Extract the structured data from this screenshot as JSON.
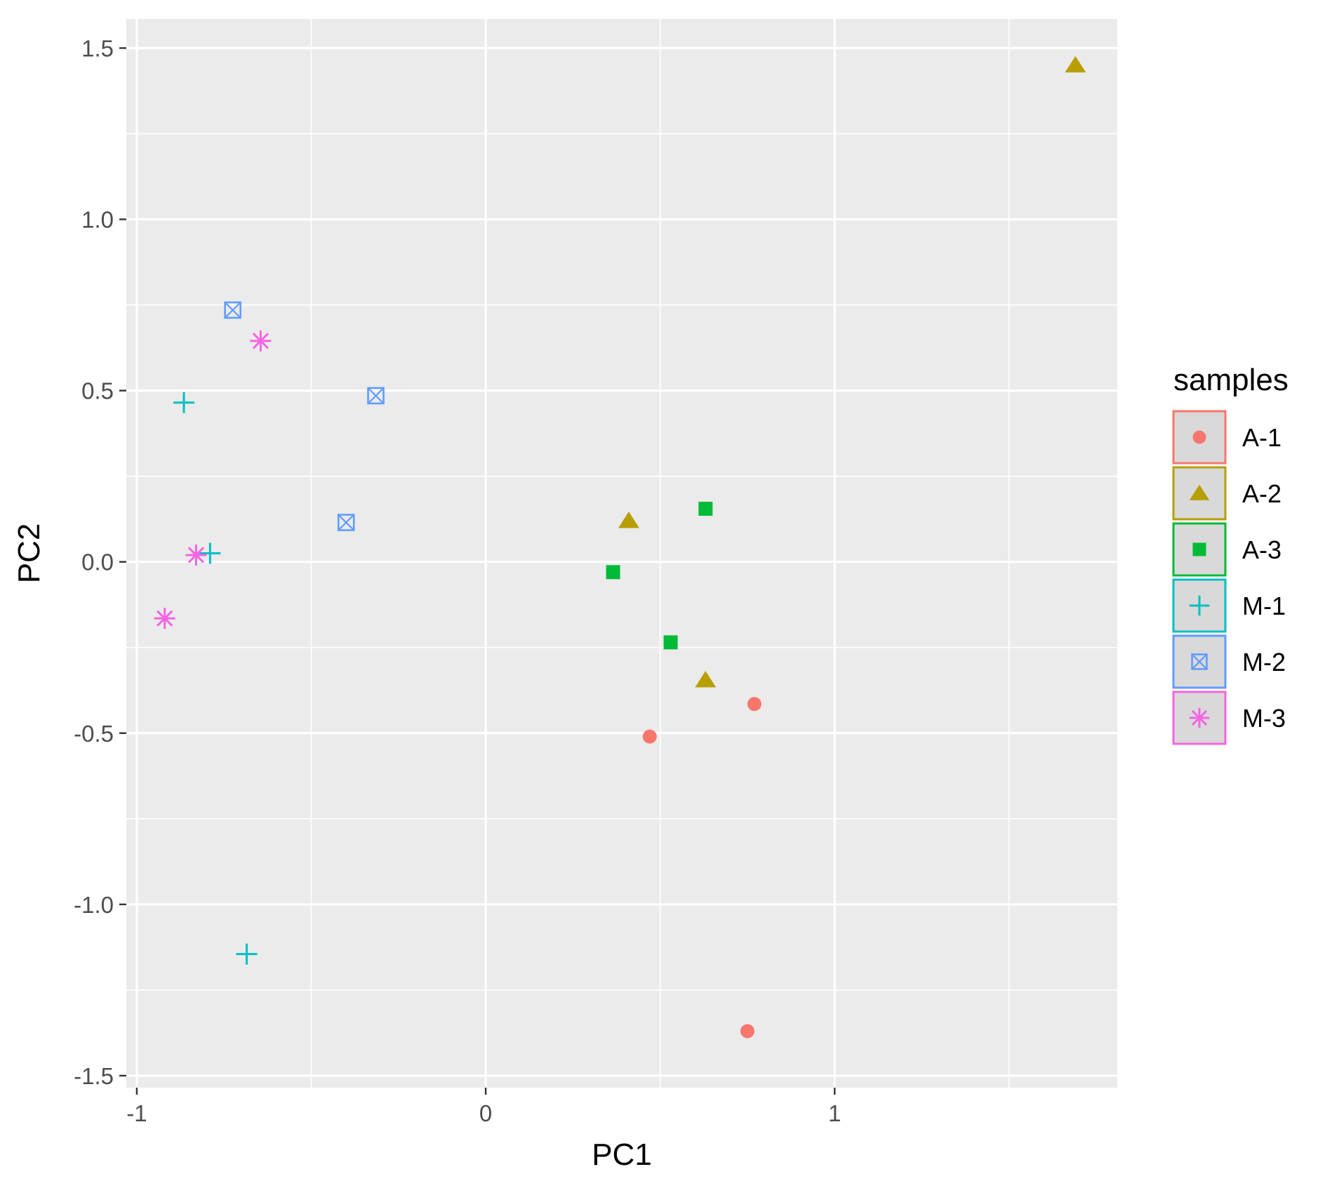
{
  "chart_data": {
    "type": "scatter",
    "title": "",
    "xlabel": "PC1",
    "ylabel": "PC2",
    "xlim": [
      -1.03,
      1.81
    ],
    "ylim": [
      -1.535,
      1.585
    ],
    "x_ticks": [
      -1,
      0,
      1
    ],
    "x_tick_labels": [
      "-1",
      "0",
      "1"
    ],
    "y_ticks": [
      -1.5,
      -1.0,
      -0.5,
      0.0,
      0.5,
      1.0,
      1.5
    ],
    "y_tick_labels": [
      "-1.5",
      "-1.0",
      "-0.5",
      "0.0",
      "0.5",
      "1.0",
      "1.5"
    ],
    "grid": true,
    "legend_title": "samples",
    "legend_position": "right",
    "series": [
      {
        "name": "A-1",
        "shape": "circle",
        "color": "#F8766D",
        "points": [
          [
            0.47,
            -0.51
          ],
          [
            0.77,
            -0.415
          ],
          [
            0.75,
            -1.37
          ]
        ]
      },
      {
        "name": "A-2",
        "shape": "triangle",
        "color": "#B79F00",
        "points": [
          [
            1.69,
            1.45
          ],
          [
            0.41,
            0.12
          ],
          [
            0.63,
            -0.345
          ]
        ]
      },
      {
        "name": "A-3",
        "shape": "square",
        "color": "#00BA38",
        "points": [
          [
            0.63,
            0.155
          ],
          [
            0.365,
            -0.03
          ],
          [
            0.53,
            -0.235
          ]
        ]
      },
      {
        "name": "M-1",
        "shape": "plus",
        "color": "#00BFC4",
        "points": [
          [
            -0.865,
            0.465
          ],
          [
            -0.79,
            0.025
          ],
          [
            -0.685,
            -1.145
          ]
        ]
      },
      {
        "name": "M-2",
        "shape": "square-cross",
        "color": "#619CFF",
        "points": [
          [
            -0.725,
            0.735
          ],
          [
            -0.315,
            0.485
          ],
          [
            -0.4,
            0.115
          ]
        ]
      },
      {
        "name": "M-3",
        "shape": "asterisk",
        "color": "#F564E3",
        "points": [
          [
            -0.645,
            0.645
          ],
          [
            -0.83,
            0.02
          ],
          [
            -0.92,
            -0.165
          ]
        ]
      }
    ]
  },
  "colors": {
    "panel_background": "#EBEBEB",
    "grid_major": "#FFFFFF",
    "legend_key_background": "#D9D9D9"
  }
}
